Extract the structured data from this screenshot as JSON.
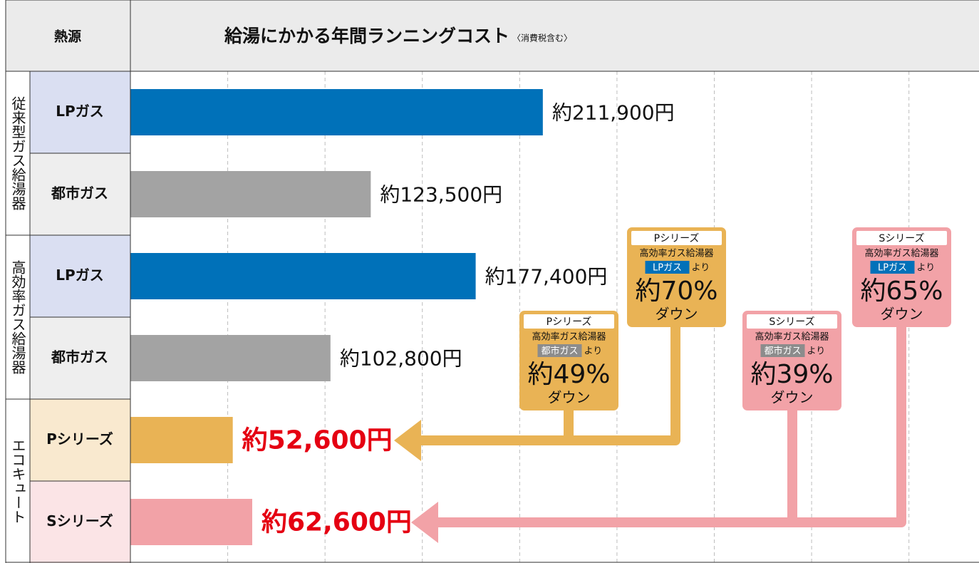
{
  "chart_data": {
    "type": "bar",
    "orientation": "horizontal",
    "header_label": "熱源",
    "title": "給湯にかかる年間ランニングコスト",
    "note": "〈消費税含む〉",
    "groups": [
      {
        "name": "従来型ガス給湯器",
        "categories": [
          "LPガス",
          "都市ガス"
        ],
        "values": [
          211900,
          123500
        ],
        "value_labels": [
          "約211,900円",
          "約123,500円"
        ],
        "colors": [
          "#0071b9",
          "#a3a3a3"
        ],
        "cell_colors": [
          "#dadff2",
          "#eeeeee"
        ],
        "label_color": "#111111"
      },
      {
        "name": "高効率ガス給湯器",
        "categories": [
          "LPガス",
          "都市ガス"
        ],
        "values": [
          177400,
          102800
        ],
        "value_labels": [
          "約177,400円",
          "約102,800円"
        ],
        "colors": [
          "#0071b9",
          "#a3a3a3"
        ],
        "cell_colors": [
          "#dadff2",
          "#eeeeee"
        ],
        "label_color": "#111111"
      },
      {
        "name": "エコキュート",
        "categories": [
          "Pシリーズ",
          "Sシリーズ"
        ],
        "values": [
          52600,
          62600
        ],
        "value_labels": [
          "約52,600円",
          "約62,600円"
        ],
        "colors": [
          "#e9b355",
          "#f2a2a7"
        ],
        "cell_colors": [
          "#f9e9cf",
          "#fbe4e6"
        ],
        "label_color": "#e50012"
      }
    ],
    "xlim": [
      0,
      436000
    ],
    "xticks": [
      50000,
      100000,
      150000,
      200000,
      250000,
      300000,
      350000,
      400000
    ],
    "grid": true,
    "callouts": [
      {
        "series": "Pシリーズ",
        "heater": "高効率ガス給湯器",
        "base": "都市ガス",
        "than": "より",
        "rate": "約49%",
        "down": "ダウン",
        "color": "#e9b355",
        "base_color": "#8c8c8c"
      },
      {
        "series": "Pシリーズ",
        "heater": "高効率ガス給湯器",
        "base": "LPガス",
        "than": "より",
        "rate": "約70%",
        "down": "ダウン",
        "color": "#e9b355",
        "base_color": "#0071b9"
      },
      {
        "series": "Sシリーズ",
        "heater": "高効率ガス給湯器",
        "base": "都市ガス",
        "than": "より",
        "rate": "約39%",
        "down": "ダウン",
        "color": "#f2a2a7",
        "base_color": "#8c8c8c"
      },
      {
        "series": "Sシリーズ",
        "heater": "高効率ガス給湯器",
        "base": "LPガス",
        "than": "より",
        "rate": "約65%",
        "down": "ダウン",
        "color": "#f2a2a7",
        "base_color": "#0071b9"
      }
    ]
  }
}
